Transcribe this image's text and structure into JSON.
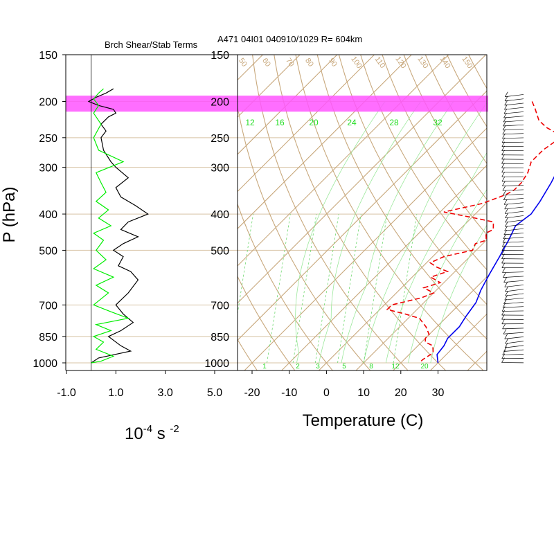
{
  "chart_data": {
    "type": "line",
    "header_title": "A471 04I01 040910/1029 R= 604km",
    "left_panel": {
      "title": "Brch Shear/Stab Terms",
      "ylabel": "P (hPa)",
      "xlabel": "10-4 s -2",
      "xlabel_parts": {
        "base": "10",
        "exp1": "-4",
        "unit": " s ",
        "exp2": "-2"
      },
      "xlim": [
        -1.0,
        5.6
      ],
      "x_ticks": [
        "-1.0",
        "1.0",
        "3.0",
        "5.0"
      ],
      "x_tick_values": [
        -1.0,
        1.0,
        3.0,
        5.0
      ],
      "series": [
        {
          "name": "",
          "color": "#000000",
          "points": [
            [
              0.9,
              185
            ],
            [
              0.6,
              190
            ],
            [
              0.2,
              195
            ],
            [
              -0.1,
              200
            ],
            [
              0.3,
              205
            ],
            [
              0.9,
              210
            ],
            [
              1.0,
              215
            ],
            [
              0.7,
              220
            ],
            [
              0.4,
              230
            ],
            [
              0.6,
              240
            ],
            [
              0.4,
              250
            ],
            [
              0.5,
              270
            ],
            [
              0.8,
              290
            ],
            [
              1.0,
              300
            ],
            [
              1.5,
              320
            ],
            [
              1.0,
              340
            ],
            [
              1.2,
              360
            ],
            [
              1.8,
              380
            ],
            [
              2.3,
              400
            ],
            [
              1.5,
              420
            ],
            [
              1.2,
              440
            ],
            [
              1.9,
              460
            ],
            [
              1.3,
              480
            ],
            [
              0.9,
              500
            ],
            [
              1.3,
              520
            ],
            [
              1.1,
              550
            ],
            [
              1.6,
              570
            ],
            [
              1.9,
              600
            ],
            [
              1.5,
              650
            ],
            [
              1.0,
              700
            ],
            [
              1.3,
              740
            ],
            [
              1.7,
              780
            ],
            [
              1.2,
              820
            ],
            [
              0.7,
              850
            ],
            [
              1.2,
              900
            ],
            [
              1.6,
              930
            ],
            [
              0.3,
              970
            ],
            [
              0.0,
              1000
            ]
          ]
        },
        {
          "name": "",
          "color": "#00ee00",
          "points": [
            [
              0.5,
              185
            ],
            [
              0.3,
              190
            ],
            [
              0.1,
              197
            ],
            [
              0.3,
              205
            ],
            [
              0.1,
              215
            ],
            [
              0.4,
              230
            ],
            [
              0.1,
              250
            ],
            [
              0.3,
              270
            ],
            [
              1.3,
              290
            ],
            [
              0.2,
              310
            ],
            [
              0.4,
              330
            ],
            [
              0.6,
              350
            ],
            [
              0.2,
              370
            ],
            [
              0.7,
              390
            ],
            [
              0.3,
              410
            ],
            [
              0.8,
              430
            ],
            [
              0.1,
              450
            ],
            [
              0.5,
              470
            ],
            [
              0.2,
              500
            ],
            [
              0.6,
              530
            ],
            [
              0.1,
              560
            ],
            [
              0.9,
              590
            ],
            [
              0.2,
              620
            ],
            [
              0.7,
              650
            ],
            [
              0.1,
              700
            ],
            [
              0.8,
              730
            ],
            [
              1.5,
              760
            ],
            [
              0.2,
              790
            ],
            [
              0.8,
              820
            ],
            [
              0.1,
              850
            ],
            [
              0.5,
              880
            ],
            [
              0.2,
              920
            ],
            [
              0.9,
              960
            ],
            [
              0.4,
              990
            ],
            [
              0.0,
              1000
            ]
          ]
        }
      ]
    },
    "skewt": {
      "xlabel": "Temperature (C)",
      "x_ticks": [
        -20,
        -10,
        0,
        10,
        20,
        30
      ],
      "temp_range": [
        -23,
        40
      ],
      "temperature": {
        "color": "#0000ee",
        "points": [
          [
            -3,
            180
          ],
          [
            -1,
            200
          ],
          [
            2,
            230
          ],
          [
            6,
            260
          ],
          [
            10,
            300
          ],
          [
            12,
            330
          ],
          [
            14,
            370
          ],
          [
            15,
            400
          ],
          [
            14,
            430
          ],
          [
            16,
            470
          ],
          [
            18,
            520
          ],
          [
            20,
            580
          ],
          [
            22,
            640
          ],
          [
            24,
            690
          ],
          [
            25,
            750
          ],
          [
            26,
            800
          ],
          [
            26,
            860
          ],
          [
            27,
            900
          ],
          [
            27.5,
            950
          ],
          [
            30,
            1000
          ]
        ]
      },
      "dewpoint": {
        "color": "#ee0000",
        "points": [
          [
            -15,
            200
          ],
          [
            -12,
            210
          ],
          [
            -8,
            225
          ],
          [
            -4,
            235
          ],
          [
            1,
            245
          ],
          [
            2,
            255
          ],
          [
            1,
            270
          ],
          [
            1,
            290
          ],
          [
            3,
            310
          ],
          [
            4,
            330
          ],
          [
            4,
            345
          ],
          [
            3,
            355
          ],
          [
            -1,
            375
          ],
          [
            -9,
            395
          ],
          [
            1,
            410
          ],
          [
            7,
            420
          ],
          [
            9,
            440
          ],
          [
            8,
            450
          ],
          [
            10,
            470
          ],
          [
            8,
            480
          ],
          [
            9,
            500
          ],
          [
            3,
            520
          ],
          [
            1,
            540
          ],
          [
            4,
            555
          ],
          [
            8,
            570
          ],
          [
            5,
            590
          ],
          [
            9,
            610
          ],
          [
            6,
            630
          ],
          [
            10,
            650
          ],
          [
            8,
            670
          ],
          [
            2,
            700
          ],
          [
            2,
            720
          ],
          [
            8,
            740
          ],
          [
            13,
            760
          ],
          [
            17,
            800
          ],
          [
            20,
            840
          ],
          [
            20,
            860
          ],
          [
            21,
            880
          ],
          [
            24,
            900
          ],
          [
            26,
            940
          ],
          [
            25,
            980
          ],
          [
            25,
            1000
          ]
        ]
      },
      "isobars": [
        150,
        200,
        250,
        300,
        400,
        500,
        700,
        850,
        1000
      ],
      "dry_adiabats": [
        -30,
        -20,
        -10,
        0,
        10,
        20,
        30,
        40,
        50,
        60,
        70,
        80,
        90,
        100,
        110,
        120,
        130,
        140,
        150
      ],
      "dry_adiabat_labels": [
        "50",
        "60",
        "70",
        "80",
        "90",
        "100",
        "110",
        "120",
        "130",
        "140",
        "150"
      ],
      "mixing_ratio_labels_top": [
        "12",
        "16",
        "20",
        "24",
        "28",
        "32"
      ],
      "mixing_ratio_labels_bottom": [
        "1",
        "2",
        "3",
        "5",
        "8",
        "12",
        "20"
      ]
    },
    "pressure_ticks": [
      150,
      200,
      250,
      300,
      400,
      500,
      700,
      850,
      1000
    ],
    "pressure_tick_labels": [
      "150",
      "200",
      "250",
      "300",
      "400",
      "500",
      "700",
      "850",
      "1000"
    ],
    "highlight_band": {
      "p_top": 193,
      "p_bottom": 213,
      "color": "#ff55ff"
    }
  }
}
